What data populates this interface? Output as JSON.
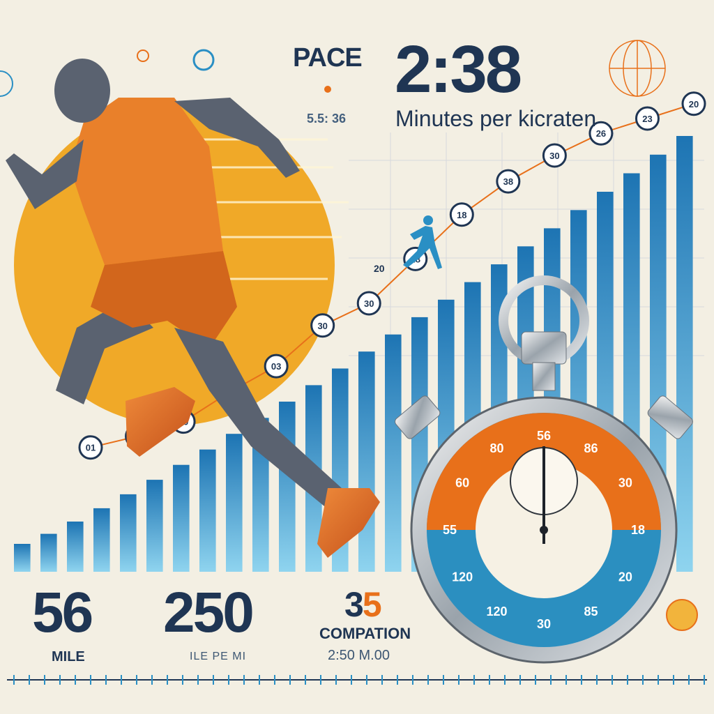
{
  "header": {
    "pace_label": "PACE",
    "pace_value": "2:38",
    "pace_sub": "5.5: 36",
    "pace_unit": "Minutes per kicraten"
  },
  "stats": {
    "stat1": {
      "value": "56",
      "label": "MILE"
    },
    "stat2": {
      "value": "250",
      "label": "ILE PE MI"
    },
    "stat3": {
      "value_main": "3",
      "value_accent": "5",
      "label": "COMPATION",
      "time": "2:50 M.00"
    }
  },
  "chart": {
    "bar_count": 26,
    "trend_markers": [
      {
        "label": "01",
        "pct": 0.11
      },
      {
        "label": "20",
        "pct": 0.14
      },
      {
        "label": "00",
        "pct": 0.18
      },
      {
        "label": "35",
        "pct": 0.26
      },
      {
        "label": "03",
        "pct": 0.33
      },
      {
        "label": "30",
        "pct": 0.44
      },
      {
        "label": "30",
        "pct": 0.5
      },
      {
        "label": "28",
        "pct": 0.62
      },
      {
        "label": "18",
        "pct": 0.74
      },
      {
        "label": "38",
        "pct": 0.83
      },
      {
        "label": "30",
        "pct": 0.9
      },
      {
        "label": "26",
        "pct": 0.96
      },
      {
        "label": "23",
        "pct": 1.0
      },
      {
        "label": "20",
        "pct": 1.04
      }
    ],
    "side_label": "20"
  },
  "stopwatch": {
    "dial_labels": [
      "56",
      "86",
      "30",
      "18",
      "20",
      "85",
      "30",
      "120",
      "120",
      "55",
      "60",
      "80"
    ]
  },
  "colors": {
    "orange": "#e8701a",
    "sun": "#f0a928",
    "blue": "#2a8fc4",
    "navy": "#1f3553",
    "bg": "#f3efe3"
  }
}
